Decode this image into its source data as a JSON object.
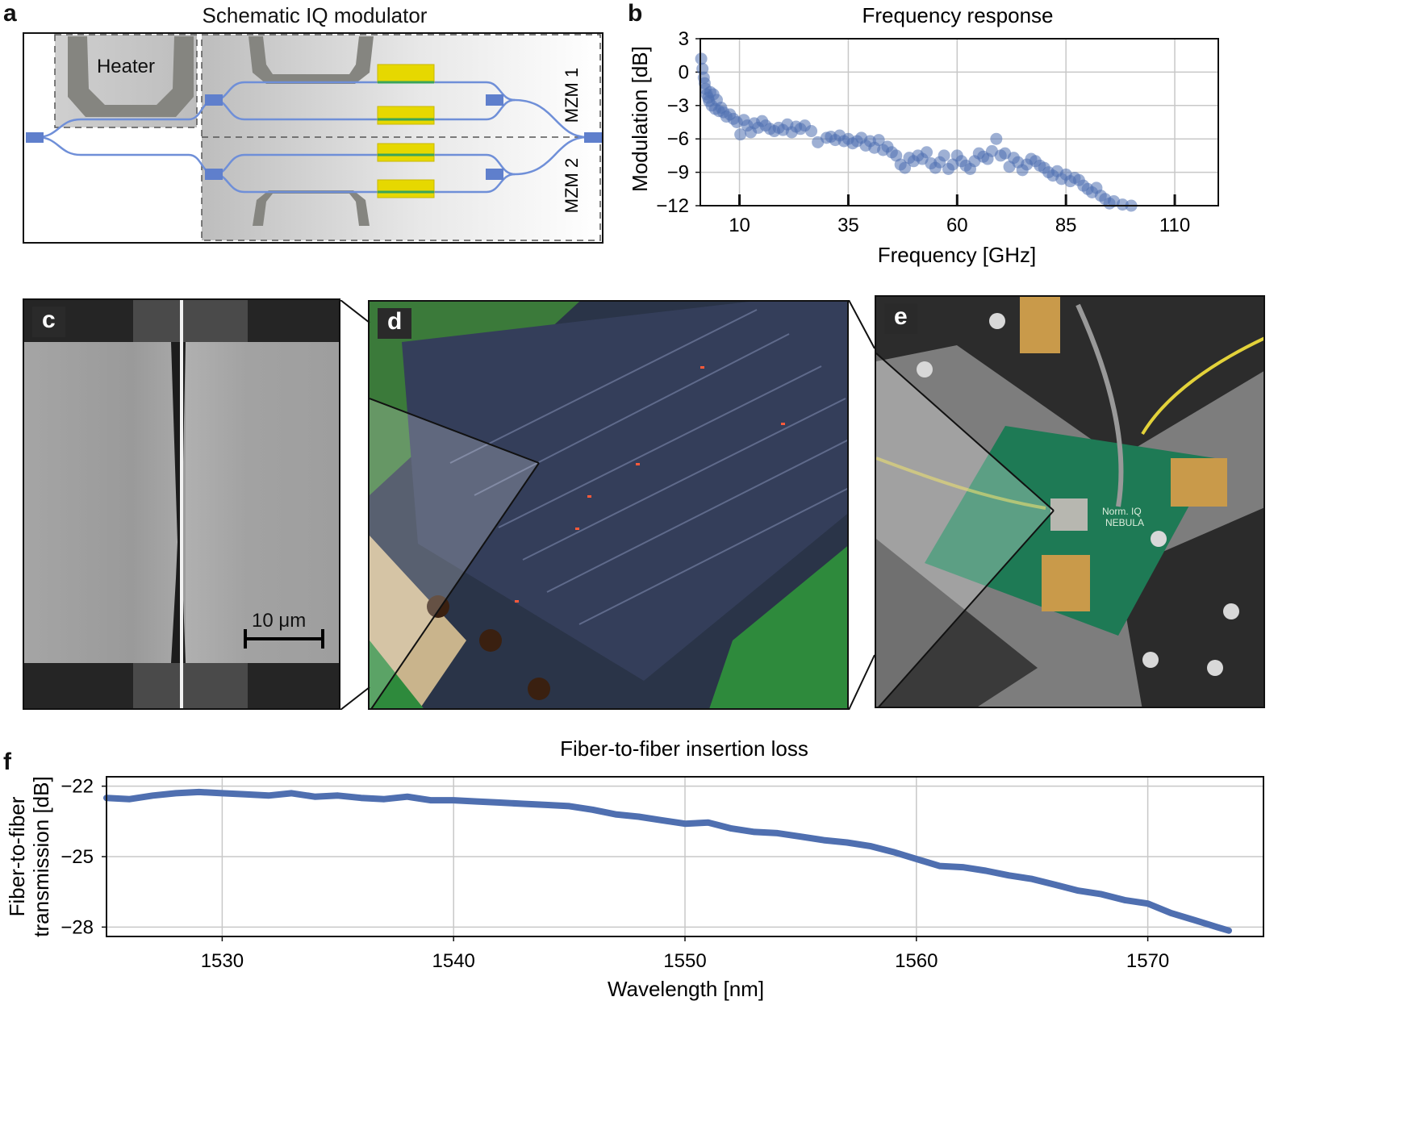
{
  "panels": {
    "a": {
      "letter": "a",
      "title": "Schematic IQ modulator",
      "heater_label": "Heater",
      "mzm1_label": "MZM 1",
      "mzm2_label": "MZM 2"
    },
    "b": {
      "letter": "b",
      "title": "Frequency response"
    },
    "c": {
      "letter": "c",
      "scalebar_label": "10 μm"
    },
    "d": {
      "letter": "d"
    },
    "e": {
      "letter": "e",
      "board_text": [
        "Norm. IQ",
        "NEBULA"
      ]
    },
    "f": {
      "letter": "f",
      "title": "Fiber-to-fiber insertion loss"
    }
  },
  "colors": {
    "data_blue": "#4f6fb0",
    "waveguide": "#6f8fd8",
    "electrode": "#e6d800",
    "heater_metal": "#858580",
    "grid": "#c8c8c8"
  },
  "chart_data": [
    {
      "id": "frequency-response",
      "type": "scatter",
      "title": "Frequency response",
      "xlabel": "Frequency [GHz]",
      "ylabel": "Modulation [dB]",
      "xlim": [
        1,
        120
      ],
      "ylim": [
        -12,
        3
      ],
      "xticks": [
        10,
        35,
        60,
        85,
        110
      ],
      "xtick_labels": [
        "10",
        "35",
        "60",
        "85",
        "110"
      ],
      "yticks": [
        3,
        0,
        -3,
        -6,
        -9,
        -12
      ],
      "ytick_labels": [
        "3",
        "0",
        "−3",
        "−6",
        "−9",
        "−12"
      ],
      "grid": true,
      "series": [
        {
          "x": [
            1.2,
            1.5,
            1.8,
            2.0,
            2.2,
            2.5,
            2.8,
            3.0,
            3.3,
            3.6,
            4.0,
            4.4,
            4.8,
            5.3,
            5.8,
            6.3,
            7,
            7.8,
            8.6,
            9.4,
            10.2,
            11,
            11.8,
            12.6,
            13.4,
            14.3,
            15.2,
            16,
            17,
            18,
            19,
            20,
            21,
            22,
            23,
            24,
            25,
            26.5,
            28,
            30,
            31,
            32,
            33,
            34,
            35,
            36,
            37,
            38,
            39,
            40,
            41,
            42,
            43,
            44,
            45,
            46,
            47,
            48,
            49,
            50,
            51,
            52,
            53,
            54,
            55,
            56,
            57,
            58,
            59,
            60,
            61,
            62,
            63,
            64,
            65,
            66,
            67,
            68,
            69,
            70,
            71,
            72,
            73,
            74,
            75,
            76,
            77,
            78,
            79,
            80,
            81,
            82,
            83,
            84,
            85,
            86,
            87,
            88,
            89,
            90,
            91,
            92,
            93,
            94,
            95,
            96,
            98,
            100
          ],
          "y": [
            1.2,
            0.3,
            -0.5,
            -1.0,
            -1.5,
            -2.0,
            -2.3,
            -2.6,
            -1.8,
            -3.0,
            -2.0,
            -3.3,
            -2.5,
            -3.5,
            -3.2,
            -3.6,
            -4.0,
            -3.8,
            -4.2,
            -4.5,
            -5.6,
            -4.3,
            -4.8,
            -5.4,
            -4.6,
            -5.0,
            -4.4,
            -4.8,
            -5.1,
            -5.3,
            -5.0,
            -5.2,
            -4.7,
            -5.4,
            -4.9,
            -5.1,
            -4.8,
            -5.3,
            -6.3,
            -5.9,
            -5.8,
            -6.1,
            -5.7,
            -6.2,
            -6.0,
            -6.4,
            -6.2,
            -5.9,
            -6.6,
            -6.2,
            -6.8,
            -6.1,
            -7.0,
            -6.7,
            -7.2,
            -7.5,
            -8.3,
            -8.6,
            -7.7,
            -8.0,
            -7.5,
            -7.8,
            -7.2,
            -8.2,
            -8.6,
            -8.1,
            -7.5,
            -8.7,
            -8.3,
            -7.5,
            -8.0,
            -8.4,
            -8.7,
            -8.0,
            -7.3,
            -7.6,
            -7.8,
            -7.1,
            -6.0,
            -7.5,
            -7.3,
            -8.5,
            -7.7,
            -8.1,
            -8.8,
            -8.3,
            -7.8,
            -8.0,
            -8.4,
            -8.6,
            -9.0,
            -9.3,
            -8.9,
            -9.6,
            -9.2,
            -9.8,
            -9.5,
            -9.7,
            -10.2,
            -10.5,
            -10.8,
            -10.4,
            -11.1,
            -11.4,
            -11.8,
            -11.6,
            -11.9,
            -12.0
          ]
        }
      ]
    },
    {
      "id": "insertion-loss",
      "type": "line",
      "title": "Fiber-to-fiber insertion loss",
      "xlabel": "Wavelength [nm]",
      "ylabel": "Fiber-to-fiber transmission [dB]",
      "xlim": [
        1525,
        1575
      ],
      "ylim": [
        -28.4,
        -21.6
      ],
      "xticks": [
        1530,
        1540,
        1550,
        1560,
        1570
      ],
      "yticks": [
        -22,
        -25,
        -28
      ],
      "ytick_labels": [
        "−22",
        "−25",
        "−28"
      ],
      "grid": true,
      "series": [
        {
          "x": [
            1525,
            1526,
            1527,
            1528,
            1529,
            1530,
            1531,
            1532,
            1533,
            1534,
            1535,
            1536,
            1537,
            1538,
            1539,
            1540,
            1541,
            1542,
            1543,
            1544,
            1545,
            1546,
            1547,
            1548,
            1549,
            1550,
            1551,
            1552,
            1553,
            1554,
            1555,
            1556,
            1557,
            1558,
            1559,
            1560,
            1561,
            1562,
            1563,
            1564,
            1565,
            1566,
            1567,
            1568,
            1569,
            1570,
            1571,
            1572,
            1573,
            1573.5
          ],
          "y": [
            -22.5,
            -22.55,
            -22.4,
            -22.3,
            -22.25,
            -22.3,
            -22.35,
            -22.4,
            -22.3,
            -22.45,
            -22.4,
            -22.5,
            -22.55,
            -22.45,
            -22.6,
            -22.6,
            -22.65,
            -22.7,
            -22.75,
            -22.8,
            -22.85,
            -23.0,
            -23.2,
            -23.3,
            -23.45,
            -23.6,
            -23.55,
            -23.8,
            -23.95,
            -24.0,
            -24.15,
            -24.3,
            -24.4,
            -24.55,
            -24.8,
            -25.1,
            -25.4,
            -25.45,
            -25.6,
            -25.8,
            -25.95,
            -26.2,
            -26.45,
            -26.6,
            -26.85,
            -27.0,
            -27.4,
            -27.7,
            -28.0,
            -28.15
          ]
        }
      ]
    }
  ]
}
